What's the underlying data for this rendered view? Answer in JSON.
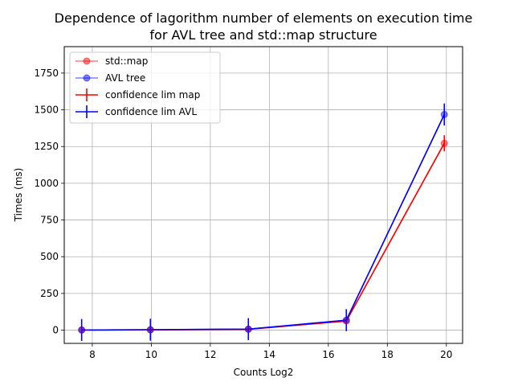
{
  "chart_data": {
    "type": "line",
    "title_line1": "Dependence of lagorithm number of elements on execution time",
    "title_line2": "for AVL tree and std::map structure",
    "xlabel": "Counts Log2",
    "ylabel": "Times (ms)",
    "xlim": [
      7.05,
      20.55
    ],
    "ylim": [
      -90,
      1930
    ],
    "xticks": [
      8,
      10,
      12,
      14,
      16,
      18,
      20
    ],
    "yticks": [
      0,
      250,
      500,
      750,
      1000,
      1250,
      1500,
      1750
    ],
    "grid": true,
    "legend_position": "upper-left",
    "x": [
      7.64,
      9.97,
      13.29,
      16.61,
      19.93
    ],
    "series": [
      {
        "name": "std::map",
        "kind": "marker",
        "color": "#ff0000",
        "values": [
          1,
          2,
          6,
          62,
          1272
        ]
      },
      {
        "name": "AVL tree",
        "kind": "marker",
        "color": "#0000ff",
        "values": [
          1,
          3,
          7,
          68,
          1468
        ]
      },
      {
        "name": "confidence lim map",
        "kind": "errorbar",
        "color": "#ff0000",
        "values": [
          1,
          2,
          6,
          62,
          1272
        ],
        "errors": [
          7,
          7,
          7,
          10,
          55
        ]
      },
      {
        "name": "confidence lim AVL",
        "kind": "errorbar",
        "color": "#0000ff",
        "values": [
          1,
          3,
          7,
          68,
          1468
        ],
        "errors": [
          75,
          75,
          75,
          75,
          75
        ]
      }
    ]
  }
}
